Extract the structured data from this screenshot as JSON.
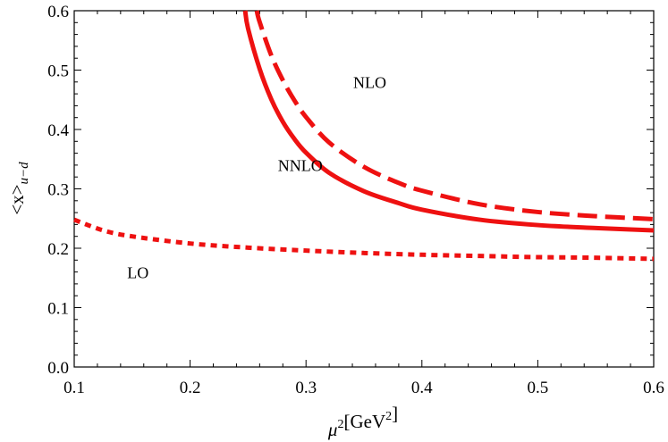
{
  "chart_data": {
    "type": "line",
    "xlabel": "μ²[GeV²]",
    "ylabel": "<x>u−d",
    "xlim": [
      0.1,
      0.6
    ],
    "ylim": [
      0.0,
      0.6
    ],
    "x_ticks": [
      "0.1",
      "0.2",
      "0.3",
      "0.4",
      "0.5",
      "0.6"
    ],
    "y_ticks": [
      "0.0",
      "0.1",
      "0.2",
      "0.3",
      "0.4",
      "0.5",
      "0.6"
    ],
    "grid": false,
    "color": "#ee1111",
    "series": [
      {
        "name": "LO",
        "style": "dotted",
        "x": [
          0.1,
          0.125,
          0.15,
          0.2,
          0.25,
          0.3,
          0.35,
          0.4,
          0.45,
          0.5,
          0.55,
          0.6
        ],
        "y": [
          0.248,
          0.23,
          0.22,
          0.208,
          0.201,
          0.196,
          0.192,
          0.189,
          0.187,
          0.185,
          0.184,
          0.182
        ]
      },
      {
        "name": "NLO",
        "style": "dashed",
        "x": [
          0.2575,
          0.26,
          0.27,
          0.28,
          0.29,
          0.3,
          0.32,
          0.35,
          0.38,
          0.4,
          0.45,
          0.5,
          0.55,
          0.6
        ],
        "y": [
          0.6,
          0.581,
          0.525,
          0.483,
          0.449,
          0.421,
          0.378,
          0.337,
          0.31,
          0.297,
          0.274,
          0.261,
          0.254,
          0.249
        ]
      },
      {
        "name": "NNLO",
        "style": "solid",
        "x": [
          0.2475,
          0.25,
          0.26,
          0.27,
          0.28,
          0.29,
          0.3,
          0.32,
          0.35,
          0.38,
          0.4,
          0.45,
          0.5,
          0.55,
          0.6
        ],
        "y": [
          0.6,
          0.57,
          0.502,
          0.451,
          0.413,
          0.384,
          0.361,
          0.327,
          0.296,
          0.276,
          0.265,
          0.248,
          0.239,
          0.234,
          0.23
        ]
      }
    ],
    "annotations": [
      {
        "text": "NLO",
        "x": 0.355,
        "y": 0.47
      },
      {
        "text": "NNLO",
        "x": 0.295,
        "y": 0.33
      },
      {
        "text": "LO",
        "x": 0.155,
        "y": 0.15
      }
    ]
  }
}
